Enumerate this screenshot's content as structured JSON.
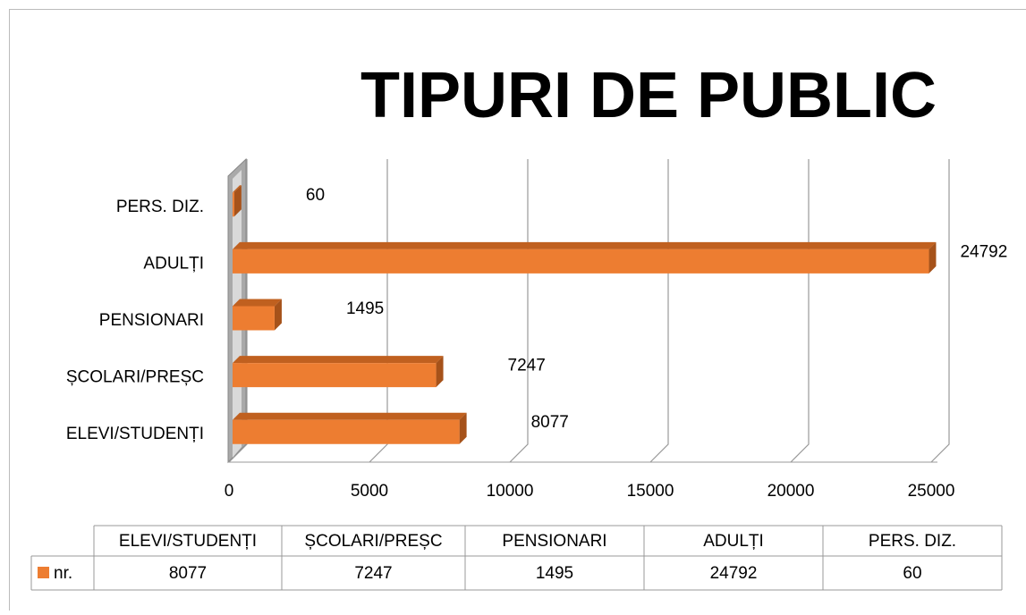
{
  "chart_data": {
    "type": "bar",
    "orientation": "horizontal",
    "title": "TIPURI DE PUBLIC",
    "categories": [
      "ELEVI/STUDENȚI",
      "ȘCOLARI/PREȘC",
      "PENSIONARI",
      "ADULȚI",
      "PERS. DIZ."
    ],
    "series": [
      {
        "name": "nr.",
        "color": "#ed7d31",
        "values": [
          8077,
          7247,
          1495,
          24792,
          60
        ]
      }
    ],
    "xlim": [
      0,
      25000
    ],
    "xticks": [
      0,
      5000,
      10000,
      15000,
      20000,
      25000
    ],
    "grid": true
  }
}
